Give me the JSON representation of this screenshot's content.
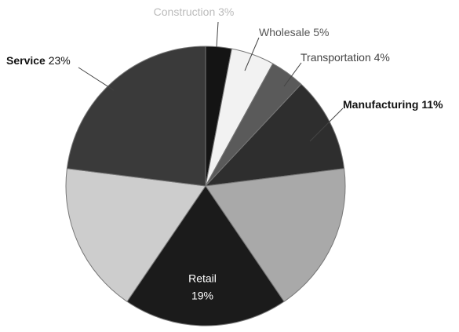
{
  "chart_data": {
    "type": "pie",
    "categories": [
      "Construction",
      "Wholesale",
      "Transportation",
      "Manufacturing",
      null,
      "Retail",
      null,
      "Service"
    ],
    "values": [
      3,
      5,
      4,
      11,
      17.5,
      19,
      17.5,
      23
    ],
    "value_labels": [
      "3%",
      "5%",
      "4%",
      "11%",
      null,
      "19%",
      null,
      "23%"
    ],
    "colors": [
      "#141414",
      "#f2f2f2",
      "#5a5a5a",
      "#2e2e2e",
      "#a9a9a9",
      "#1b1b1b",
      "#cdcdcd",
      "#3a3a3a"
    ]
  }
}
